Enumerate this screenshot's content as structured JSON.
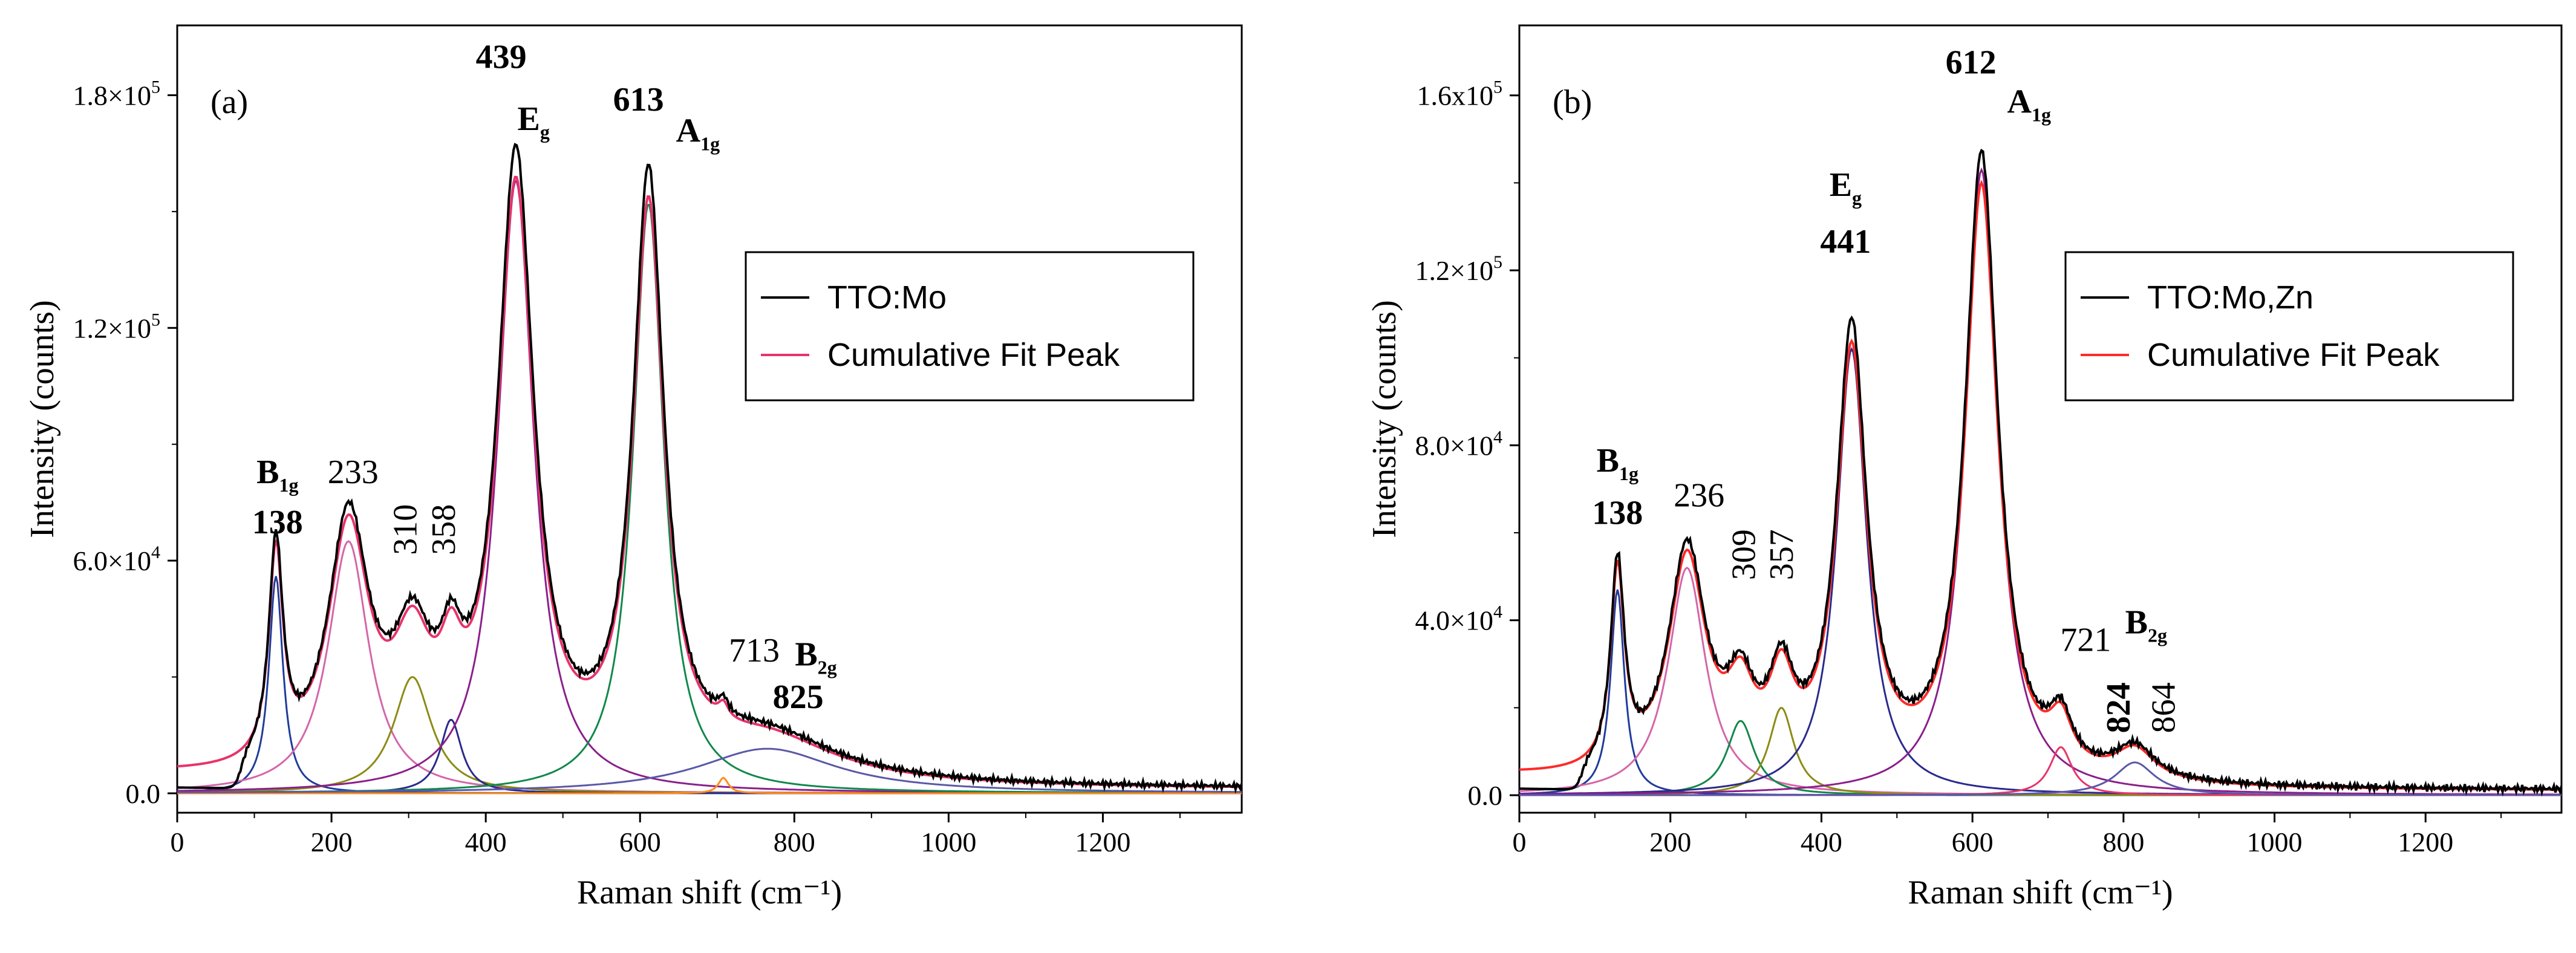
{
  "chart_data": [
    {
      "type": "line",
      "panel_label": "(a)",
      "xlabel": "Raman shift (cm⁻¹)",
      "ylabel": "Intensity (counts)",
      "xlim": [
        0,
        1380
      ],
      "ylim": [
        -5000,
        198000
      ],
      "xticks": [
        0,
        200,
        400,
        600,
        800,
        1000,
        1200
      ],
      "yticks": [
        {
          "value": 0,
          "base": "0.0",
          "exp": ""
        },
        {
          "value": 60000,
          "base": "6.0×10",
          "exp": "4"
        },
        {
          "value": 120000,
          "base": "1.2×10",
          "exp": "5"
        },
        {
          "value": 180000,
          "base": "1.8×10",
          "exp": "5"
        }
      ],
      "legend": {
        "position": "right",
        "entries": [
          {
            "label": "TTO:Mo",
            "color": "#000000"
          },
          {
            "label": "Cumulative Fit Peak",
            "color": "#e8336b"
          }
        ]
      },
      "baseline": 1000,
      "measured_extra": [
        {
          "center": 80,
          "width": 5,
          "amp": -45000,
          "shape": "edge"
        }
      ],
      "fit_offset_factor": 0.95,
      "components": [
        {
          "center": 128,
          "width": 11,
          "amp": 56000,
          "color": "#1f3c9a"
        },
        {
          "center": 222,
          "width": 32,
          "amp": 65000,
          "color": "#d466a8"
        },
        {
          "center": 305,
          "width": 30,
          "amp": 30000,
          "color": "#8b8b14"
        },
        {
          "center": 355,
          "width": 17,
          "amp": 19000,
          "color": "#2a2a8c"
        },
        {
          "center": 439,
          "width": 28,
          "amp": 158000,
          "color": "#8b1f8b"
        },
        {
          "center": 611,
          "width": 24,
          "amp": 152000,
          "color": "#11884a"
        },
        {
          "center": 708,
          "width": 8,
          "amp": 4000,
          "color": "#ff8c1a"
        },
        {
          "center": 765,
          "width": 110,
          "amp": 11500,
          "color": "#5a58a8"
        }
      ],
      "annotations": [
        {
          "text": "B",
          "sub": "1g",
          "bold": true,
          "x": 130,
          "y": 80000
        },
        {
          "text": "138",
          "bold": true,
          "x": 130,
          "y": 67000
        },
        {
          "text": "233",
          "bold": false,
          "x": 228,
          "y": 80000
        },
        {
          "text": "310",
          "bold": false,
          "x": 310,
          "y": 68000,
          "rotate": -90
        },
        {
          "text": "358",
          "bold": false,
          "x": 360,
          "y": 68000,
          "rotate": -90
        },
        {
          "text": "439",
          "bold": true,
          "x": 420,
          "y": 187000
        },
        {
          "text": "E",
          "sub": "g",
          "bold": true,
          "x": 462,
          "y": 171000
        },
        {
          "text": "613",
          "bold": true,
          "x": 598,
          "y": 176000
        },
        {
          "text": "A",
          "sub": "1g",
          "bold": true,
          "x": 675,
          "y": 168000
        },
        {
          "text": "713",
          "bold": false,
          "x": 748,
          "y": 34000
        },
        {
          "text": "B",
          "sub": "2g",
          "bold": true,
          "x": 828,
          "y": 33000
        },
        {
          "text": "825",
          "bold": true,
          "x": 805,
          "y": 22000
        }
      ]
    },
    {
      "type": "line",
      "panel_label": "(b)",
      "xlabel": "Raman shift (cm⁻¹)",
      "ylabel": "Intensity (counts)",
      "xlim": [
        0,
        1380
      ],
      "ylim": [
        -4000,
        176000
      ],
      "xticks": [
        0,
        200,
        400,
        600,
        800,
        1000,
        1200
      ],
      "yticks": [
        {
          "value": 0,
          "base": "0.0",
          "exp": ""
        },
        {
          "value": 40000,
          "base": "4.0×10",
          "exp": "4"
        },
        {
          "value": 80000,
          "base": "8.0×10",
          "exp": "4"
        },
        {
          "value": 120000,
          "base": "1.2×10",
          "exp": "5"
        },
        {
          "value": 160000,
          "base": "1.6x10",
          "exp": "5"
        }
      ],
      "legend": {
        "position": "right",
        "entries": [
          {
            "label": "TTO:Mo,Zn",
            "color": "#000000"
          },
          {
            "label": "Cumulative Fit Peak",
            "color": "#ff2a2a"
          }
        ]
      },
      "baseline": 1000,
      "measured_extra": [
        {
          "center": 80,
          "width": 5,
          "amp": -40000,
          "shape": "edge"
        }
      ],
      "fit_offset_factor": 0.95,
      "components": [
        {
          "center": 130,
          "width": 11,
          "amp": 47000,
          "color": "#1f3c9a"
        },
        {
          "center": 222,
          "width": 30,
          "amp": 52000,
          "color": "#d466a8"
        },
        {
          "center": 293,
          "width": 22,
          "amp": 17000,
          "color": "#11884a"
        },
        {
          "center": 347,
          "width": 20,
          "amp": 20000,
          "color": "#8b8b14"
        },
        {
          "center": 440,
          "width": 24,
          "amp": 102000,
          "color": "#2a2a8c"
        },
        {
          "center": 612,
          "width": 26,
          "amp": 143000,
          "color": "#8b1f8b"
        },
        {
          "center": 717,
          "width": 18,
          "amp": 11000,
          "color": "#e8336b"
        },
        {
          "center": 815,
          "width": 32,
          "amp": 7500,
          "color": "#5a58a8"
        }
      ],
      "annotations": [
        {
          "text": "B",
          "sub": "1g",
          "bold": true,
          "x": 130,
          "y": 74000
        },
        {
          "text": "138",
          "bold": true,
          "x": 130,
          "y": 62000
        },
        {
          "text": "236",
          "bold": false,
          "x": 238,
          "y": 66000
        },
        {
          "text": "309",
          "bold": false,
          "x": 312,
          "y": 55000,
          "rotate": -90
        },
        {
          "text": "357",
          "bold": false,
          "x": 362,
          "y": 55000,
          "rotate": -90
        },
        {
          "text": "E",
          "sub": "g",
          "bold": true,
          "x": 432,
          "y": 137000
        },
        {
          "text": "441",
          "bold": true,
          "x": 432,
          "y": 124000
        },
        {
          "text": "612",
          "bold": true,
          "x": 598,
          "y": 165000
        },
        {
          "text": "A",
          "sub": "1g",
          "bold": true,
          "x": 675,
          "y": 156000
        },
        {
          "text": "721",
          "bold": false,
          "x": 750,
          "y": 33000
        },
        {
          "text": "B",
          "sub": "2g",
          "bold": true,
          "x": 830,
          "y": 37000
        },
        {
          "text": "824",
          "bold": true,
          "x": 808,
          "y": 20000,
          "rotate": -90
        },
        {
          "text": "864",
          "bold": false,
          "x": 868,
          "y": 20000,
          "rotate": -90
        }
      ]
    }
  ]
}
